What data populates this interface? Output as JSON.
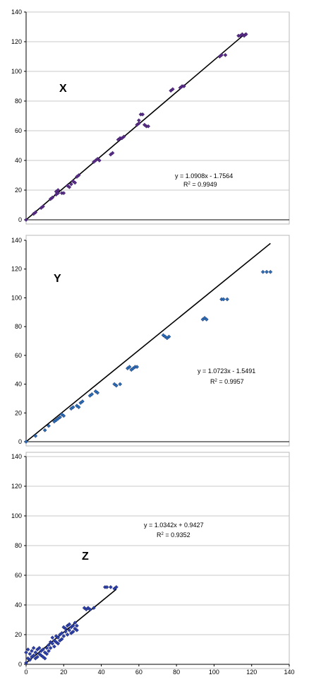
{
  "chart_data": [
    {
      "type": "scatter",
      "panel_label": "X",
      "xlim": [
        0,
        140
      ],
      "ylim": [
        0,
        140
      ],
      "x_ticks": [],
      "y_ticks": [
        "0",
        "20",
        "40",
        "60",
        "80",
        "100",
        "120",
        "140"
      ],
      "gridlines": "horizontal",
      "equation": "y = 1.0908x - 1.7564",
      "r2_prefix": "R",
      "r2_sup": "2",
      "r2_value": " = 0.9949",
      "trendline": {
        "slope": 1.0908,
        "intercept": -1.7564
      },
      "marker_color": "#5b2a86",
      "points": [
        [
          0,
          0
        ],
        [
          4,
          4
        ],
        [
          5,
          5
        ],
        [
          8,
          8
        ],
        [
          9,
          9
        ],
        [
          13,
          14
        ],
        [
          14,
          15
        ],
        [
          16,
          17
        ],
        [
          16,
          19
        ],
        [
          17,
          18
        ],
        [
          17,
          20
        ],
        [
          19,
          18
        ],
        [
          20,
          18
        ],
        [
          22,
          23
        ],
        [
          23,
          22
        ],
        [
          24,
          24
        ],
        [
          25,
          26
        ],
        [
          26,
          25
        ],
        [
          27,
          29
        ],
        [
          28,
          30
        ],
        [
          36,
          39
        ],
        [
          37,
          40
        ],
        [
          38,
          41
        ],
        [
          39,
          40
        ],
        [
          45,
          44
        ],
        [
          46,
          45
        ],
        [
          49,
          54
        ],
        [
          50,
          55
        ],
        [
          51,
          55
        ],
        [
          52,
          56
        ],
        [
          59,
          64
        ],
        [
          60,
          65
        ],
        [
          60,
          67
        ],
        [
          61,
          71
        ],
        [
          62,
          71
        ],
        [
          63,
          64
        ],
        [
          64,
          63
        ],
        [
          65,
          63
        ],
        [
          77,
          87
        ],
        [
          78,
          88
        ],
        [
          82,
          89
        ],
        [
          83,
          90
        ],
        [
          84,
          90
        ],
        [
          103,
          110
        ],
        [
          104,
          111
        ],
        [
          106,
          111
        ],
        [
          113,
          124
        ],
        [
          114,
          124
        ],
        [
          115,
          125
        ],
        [
          116,
          124
        ],
        [
          117,
          125
        ]
      ]
    },
    {
      "type": "scatter",
      "panel_label": "Y",
      "xlim": [
        0,
        140
      ],
      "ylim": [
        0,
        140
      ],
      "x_ticks": [],
      "y_ticks": [
        "0",
        "20",
        "40",
        "60",
        "80",
        "100",
        "120",
        "140"
      ],
      "gridlines": "none",
      "equation": "y = 1.0723x - 1.5491",
      "r2_prefix": "R",
      "r2_sup": "2",
      "r2_value": " = 0.9957",
      "trendline": {
        "slope": 1.0723,
        "intercept": -1.5491
      },
      "marker_color": "#2a6db5",
      "points": [
        [
          0,
          0
        ],
        [
          5,
          4
        ],
        [
          10,
          8
        ],
        [
          12,
          11
        ],
        [
          15,
          14
        ],
        [
          16,
          15
        ],
        [
          17,
          16
        ],
        [
          18,
          17
        ],
        [
          19,
          19
        ],
        [
          20,
          18
        ],
        [
          24,
          23
        ],
        [
          25,
          24
        ],
        [
          27,
          25
        ],
        [
          28,
          24
        ],
        [
          29,
          27
        ],
        [
          30,
          28
        ],
        [
          34,
          32
        ],
        [
          35,
          33
        ],
        [
          37,
          35
        ],
        [
          38,
          34
        ],
        [
          47,
          40
        ],
        [
          48,
          39
        ],
        [
          50,
          40
        ],
        [
          54,
          51
        ],
        [
          55,
          52
        ],
        [
          56,
          50
        ],
        [
          57,
          51
        ],
        [
          58,
          52
        ],
        [
          59,
          52
        ],
        [
          73,
          74
        ],
        [
          74,
          73
        ],
        [
          75,
          72
        ],
        [
          76,
          73
        ],
        [
          94,
          85
        ],
        [
          95,
          86
        ],
        [
          96,
          85
        ],
        [
          104,
          99
        ],
        [
          105,
          99
        ],
        [
          107,
          99
        ],
        [
          126,
          118
        ],
        [
          128,
          118
        ],
        [
          130,
          118
        ]
      ]
    },
    {
      "type": "scatter",
      "panel_label": "Z",
      "xlim": [
        0,
        140
      ],
      "ylim": [
        0,
        140
      ],
      "x_ticks": [
        "0",
        "20",
        "40",
        "60",
        "80",
        "100",
        "120",
        "140"
      ],
      "y_ticks": [
        "0",
        "20",
        "40",
        "60",
        "80",
        "100",
        "120",
        "140"
      ],
      "gridlines": "horizontal",
      "equation": "y = 1.0342x + 0.9427",
      "r2_prefix": "R",
      "r2_sup": "2",
      "r2_value": " = 0.9352",
      "trendline": {
        "slope": 1.0342,
        "intercept": 0.9427
      },
      "marker_color": "#2b3fa8",
      "points": [
        [
          0,
          1
        ],
        [
          0,
          8
        ],
        [
          1,
          4
        ],
        [
          1,
          10
        ],
        [
          2,
          3
        ],
        [
          2,
          7
        ],
        [
          3,
          5
        ],
        [
          3,
          9
        ],
        [
          4,
          6
        ],
        [
          4,
          11
        ],
        [
          5,
          4
        ],
        [
          5,
          8
        ],
        [
          6,
          10
        ],
        [
          6,
          5
        ],
        [
          7,
          7
        ],
        [
          7,
          11
        ],
        [
          8,
          6
        ],
        [
          8,
          9
        ],
        [
          9,
          5
        ],
        [
          9,
          10
        ],
        [
          10,
          8
        ],
        [
          10,
          4
        ],
        [
          11,
          7
        ],
        [
          11,
          11
        ],
        [
          12,
          9
        ],
        [
          12,
          13
        ],
        [
          13,
          11
        ],
        [
          13,
          15
        ],
        [
          14,
          14
        ],
        [
          14,
          18
        ],
        [
          15,
          12
        ],
        [
          15,
          16
        ],
        [
          16,
          15
        ],
        [
          16,
          19
        ],
        [
          17,
          18
        ],
        [
          17,
          14
        ],
        [
          18,
          20
        ],
        [
          18,
          16
        ],
        [
          19,
          21
        ],
        [
          19,
          17
        ],
        [
          20,
          25
        ],
        [
          20,
          19
        ],
        [
          21,
          22
        ],
        [
          21,
          24
        ],
        [
          22,
          20
        ],
        [
          22,
          26
        ],
        [
          23,
          23
        ],
        [
          23,
          27
        ],
        [
          24,
          25
        ],
        [
          24,
          21
        ],
        [
          25,
          26
        ],
        [
          25,
          22
        ],
        [
          26,
          24
        ],
        [
          26,
          28
        ],
        [
          27,
          23
        ],
        [
          27,
          26
        ],
        [
          31,
          38
        ],
        [
          32,
          37
        ],
        [
          33,
          38
        ],
        [
          34,
          37
        ],
        [
          36,
          38
        ],
        [
          42,
          52
        ],
        [
          43,
          52
        ],
        [
          45,
          52
        ],
        [
          47,
          51
        ],
        [
          48,
          52
        ]
      ]
    }
  ]
}
